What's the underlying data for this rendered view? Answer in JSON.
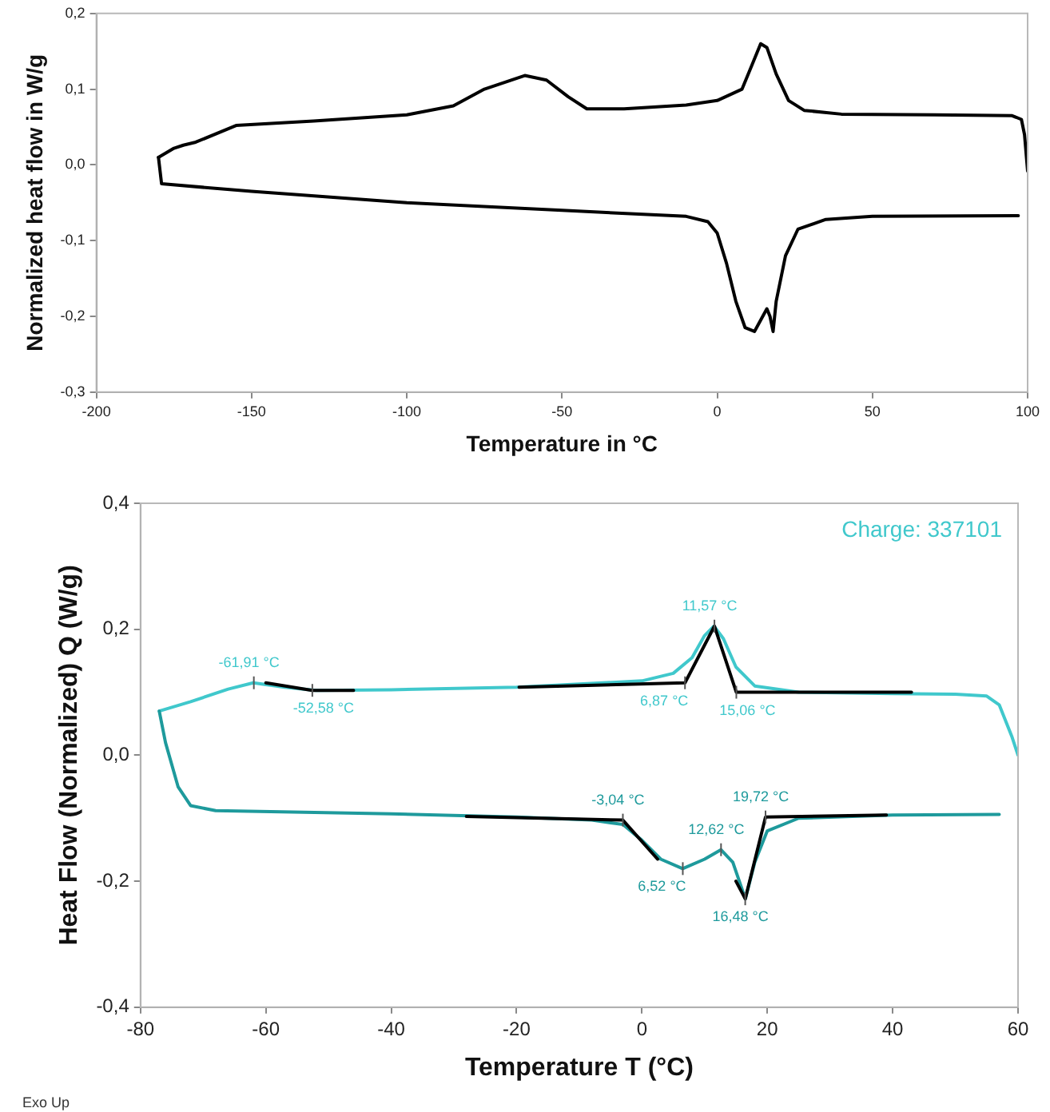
{
  "chart_data": [
    {
      "type": "line",
      "xlabel": "Temperature in °C",
      "ylabel": "Normalized heat flow in W/g",
      "xlim": [
        -200,
        100
      ],
      "xticks": [
        -200,
        -150,
        -100,
        -50,
        0,
        50,
        100
      ],
      "ylim": [
        -0.3,
        0.2
      ],
      "yticks": [
        {
          "value": -0.3,
          "label": "-0,3"
        },
        {
          "value": -0.2,
          "label": "-0,2"
        },
        {
          "value": -0.1,
          "label": "-0,1"
        },
        {
          "value": 0,
          "label": "0,0"
        },
        {
          "value": 0.1,
          "label": "0,1"
        },
        {
          "value": 0.2,
          "label": "0,2"
        }
      ],
      "grid": false,
      "legend": false,
      "marker": "none",
      "line_style": "solid",
      "series": [
        {
          "color": "#000000",
          "x": [
            -180,
            -175,
            -172,
            -168,
            -155,
            -130,
            -100,
            -85,
            -75,
            -62,
            -55,
            -48,
            -42,
            -30,
            -10,
            0,
            8,
            11,
            14,
            16,
            19,
            23,
            28,
            40,
            70,
            95,
            98,
            99,
            100
          ],
          "values": [
            0.01,
            0.022,
            0.026,
            0.03,
            0.052,
            0.058,
            0.066,
            0.078,
            0.1,
            0.118,
            0.112,
            0.09,
            0.074,
            0.074,
            0.079,
            0.085,
            0.1,
            0.13,
            0.16,
            0.155,
            0.12,
            0.085,
            0.072,
            0.067,
            0.066,
            0.065,
            0.06,
            0.04,
            -0.008
          ]
        },
        {
          "color": "#000000",
          "x": [
            -180,
            -179,
            -150,
            -100,
            -50,
            -10,
            -3,
            0,
            3,
            6,
            9,
            12,
            14,
            16,
            17,
            18,
            19,
            22,
            26,
            35,
            50,
            97
          ],
          "values": [
            0.01,
            -0.025,
            -0.035,
            -0.05,
            -0.06,
            -0.068,
            -0.075,
            -0.09,
            -0.13,
            -0.18,
            -0.215,
            -0.22,
            -0.205,
            -0.19,
            -0.2,
            -0.22,
            -0.18,
            -0.12,
            -0.085,
            -0.072,
            -0.068,
            -0.067
          ]
        }
      ]
    },
    {
      "type": "line",
      "xlabel": "Temperature T (°C)",
      "ylabel": "Heat Flow (Normalized) Q (W/g)",
      "xlim": [
        -80,
        60
      ],
      "xticks": [
        -80,
        -60,
        -40,
        -20,
        0,
        20,
        40,
        60
      ],
      "ylim": [
        -0.4,
        0.4
      ],
      "yticks": [
        {
          "value": -0.4,
          "label": "-0,4"
        },
        {
          "value": -0.2,
          "label": "-0,2"
        },
        {
          "value": 0,
          "label": "0,0"
        },
        {
          "value": 0.2,
          "label": "0,2"
        },
        {
          "value": 0.4,
          "label": "0,4"
        }
      ],
      "grid": false,
      "legend": false,
      "marker": "none",
      "line_style": "solid",
      "series": [
        {
          "color": "#40c8cc",
          "x": [
            -77,
            -72,
            -66,
            -62,
            -57,
            -52,
            -40,
            -20,
            0,
            5,
            8,
            10,
            11.5,
            13,
            15,
            18,
            25,
            40,
            50,
            55,
            57,
            59,
            60
          ],
          "values": [
            0.07,
            0.085,
            0.105,
            0.115,
            0.108,
            0.103,
            0.104,
            0.108,
            0.118,
            0.13,
            0.155,
            0.19,
            0.205,
            0.185,
            0.14,
            0.11,
            0.1,
            0.098,
            0.097,
            0.094,
            0.08,
            0.03,
            0
          ]
        },
        {
          "color": "#1e9a9c",
          "x": [
            -77,
            -76,
            -74,
            -72,
            -68,
            -40,
            -20,
            -8,
            -3,
            0,
            3,
            6.5,
            10,
            12.6,
            14.5,
            16.5,
            18,
            20,
            25,
            40,
            57
          ],
          "values": [
            0.07,
            0.02,
            -0.05,
            -0.08,
            -0.088,
            -0.093,
            -0.098,
            -0.103,
            -0.11,
            -0.135,
            -0.165,
            -0.18,
            -0.165,
            -0.15,
            -0.17,
            -0.228,
            -0.17,
            -0.12,
            -0.1,
            -0.095,
            -0.094
          ]
        },
        {
          "color": "#000000",
          "x": [
            -60,
            -52.58,
            -46
          ],
          "values": [
            0.115,
            0.103,
            0.103
          ]
        },
        {
          "color": "#000000",
          "x": [
            -19.6,
            6.87,
            11.57,
            15.06,
            43
          ],
          "values": [
            0.108,
            0.115,
            0.205,
            0.1,
            0.1
          ]
        },
        {
          "color": "#000000",
          "x": [
            -28,
            -3.04,
            2.5
          ],
          "values": [
            -0.097,
            -0.103,
            -0.165
          ]
        },
        {
          "color": "#000000",
          "x": [
            15,
            16.48,
            19.72,
            39
          ],
          "values": [
            -0.2,
            -0.228,
            -0.098,
            -0.095
          ]
        }
      ],
      "annotations": [
        "Charge: 337101",
        "Exo Up",
        {
          "text": "-61,91 °C",
          "x": -61.91,
          "y": 0.115
        },
        {
          "text": "-52,58 °C",
          "x": -52.58,
          "y": 0.103
        },
        {
          "text": "11,57 °C",
          "x": 11.57,
          "y": 0.205
        },
        {
          "text": "6,87 °C",
          "x": 6.87,
          "y": 0.115
        },
        {
          "text": "15,06 °C",
          "x": 15.06,
          "y": 0.1
        },
        {
          "text": "-3,04 °C",
          "x": -3.04,
          "y": -0.103
        },
        {
          "text": "6,52 °C",
          "x": 6.52,
          "y": -0.18
        },
        {
          "text": "12,62 °C",
          "x": 12.62,
          "y": -0.15
        },
        {
          "text": "19,72 °C",
          "x": 19.72,
          "y": -0.098
        },
        {
          "text": "16,48 °C",
          "x": 16.48,
          "y": -0.228
        }
      ]
    }
  ]
}
